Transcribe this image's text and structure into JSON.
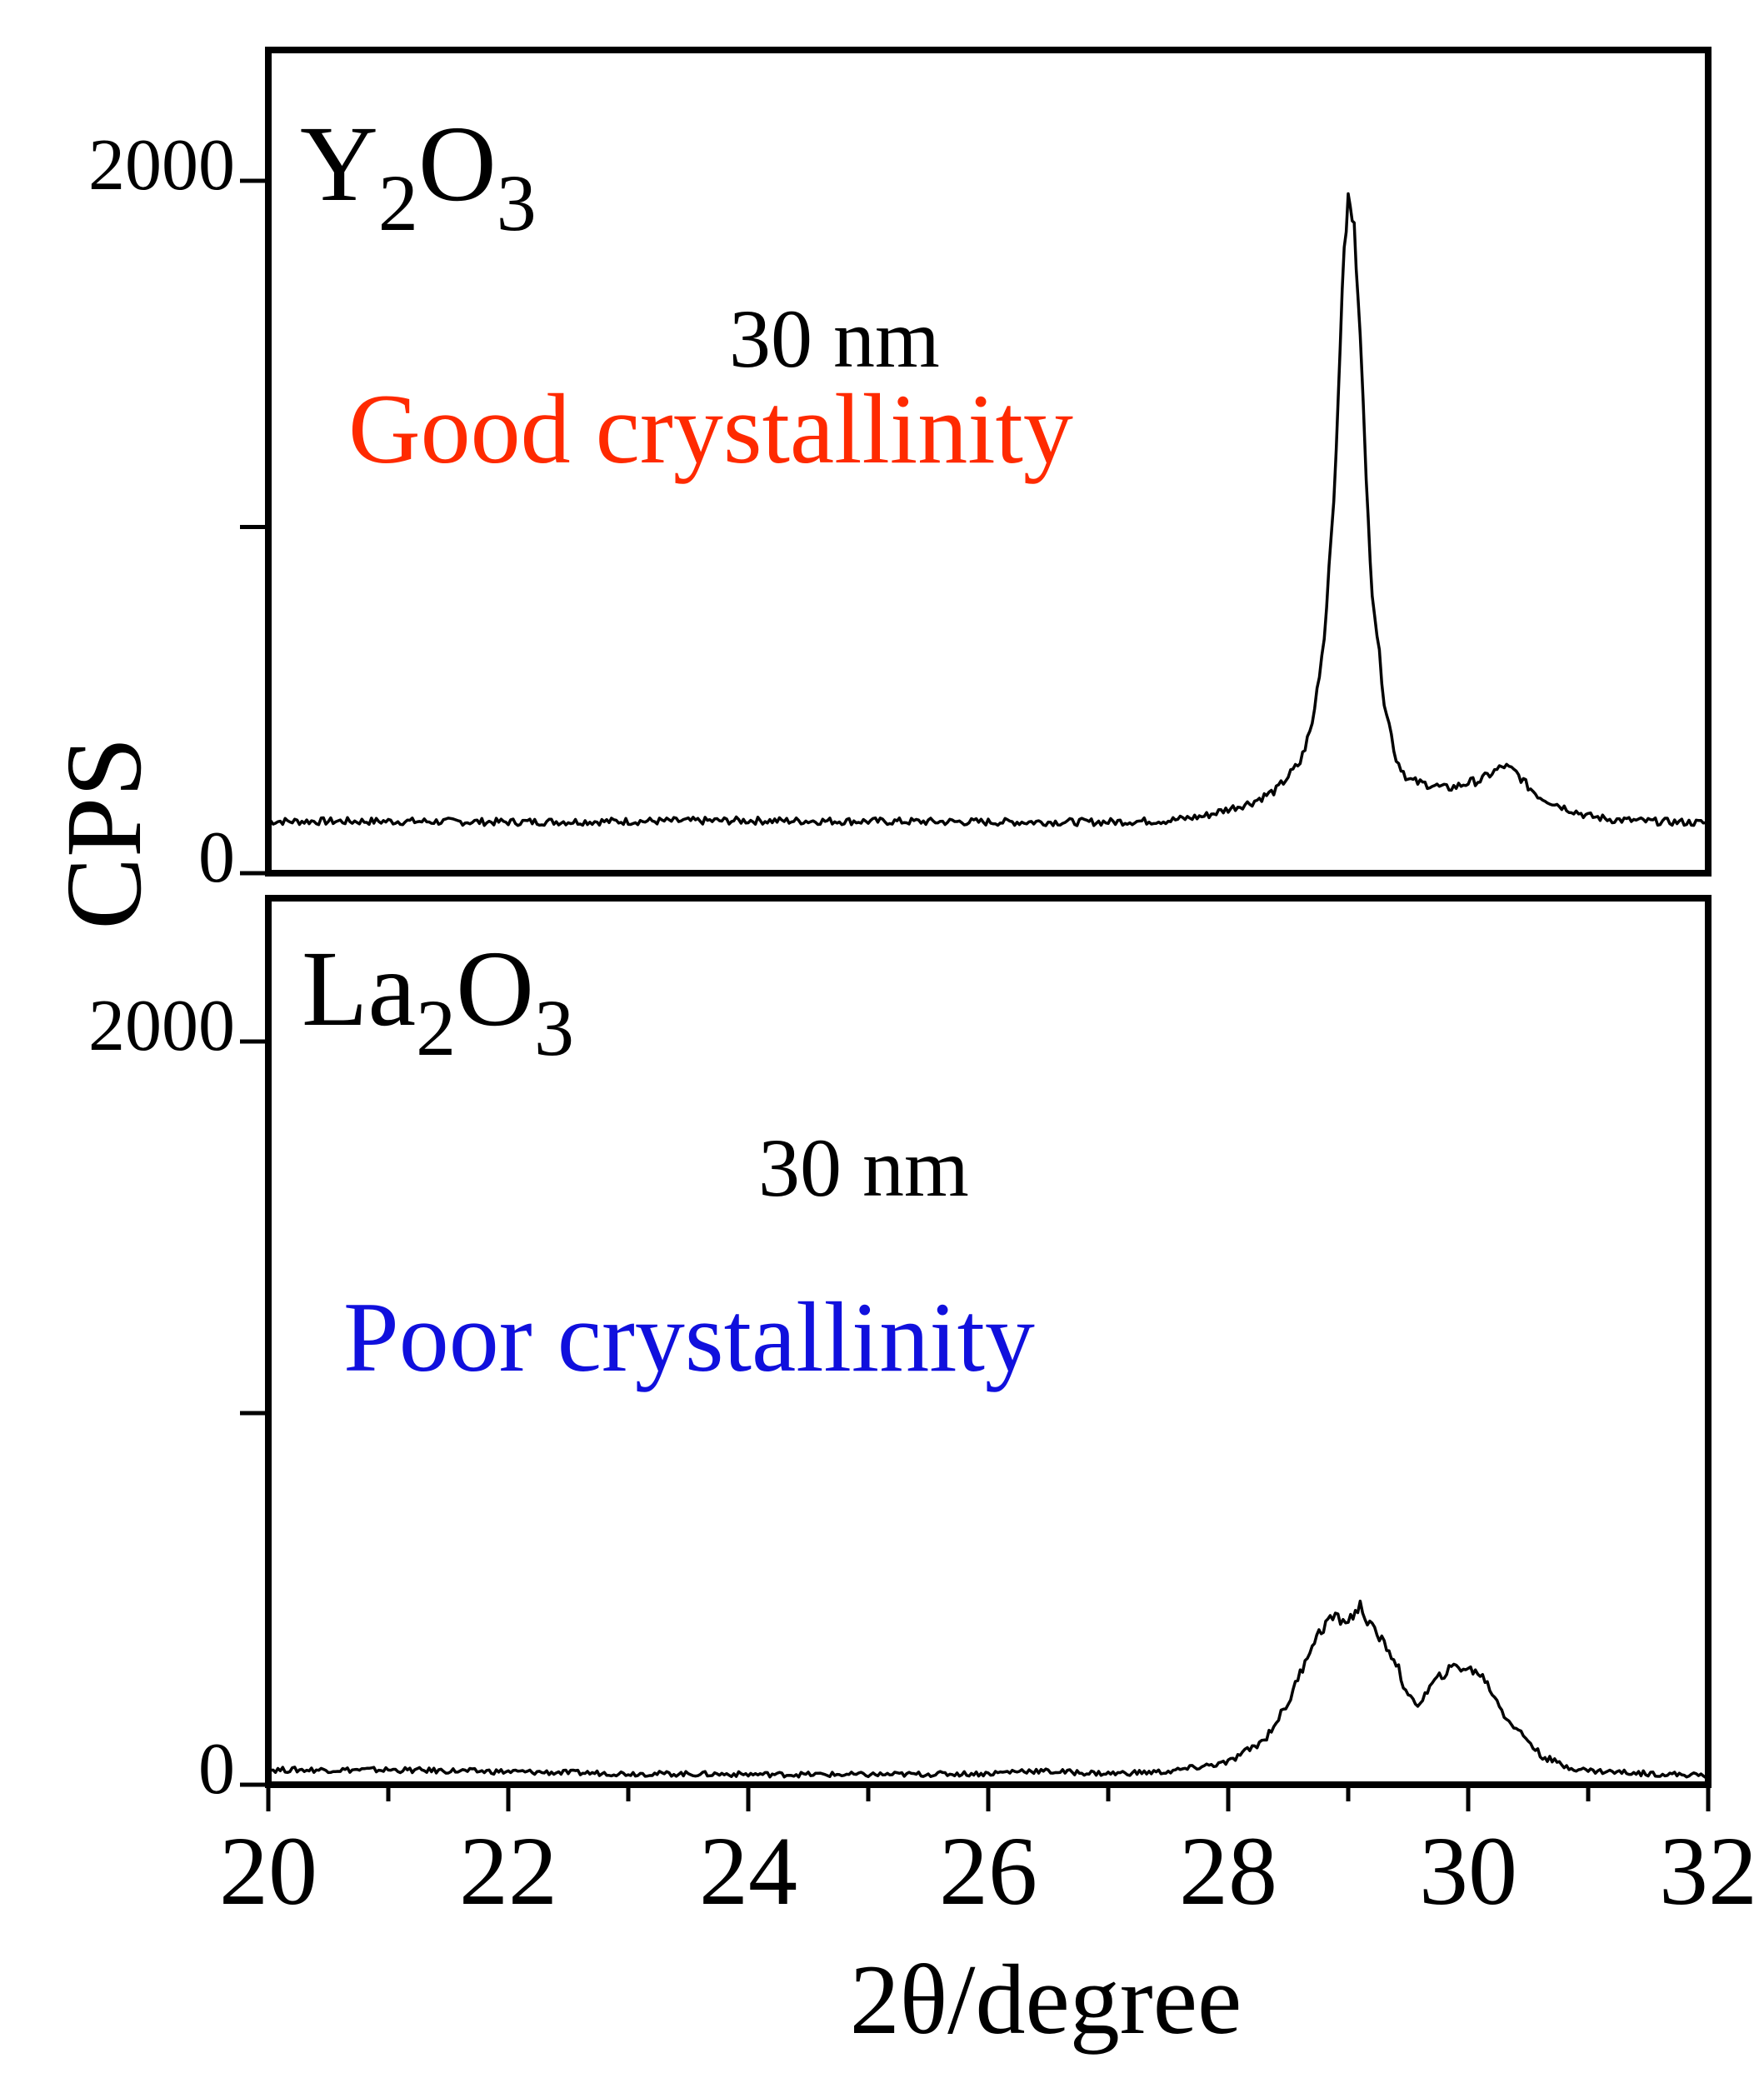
{
  "y_axis_label": "CPS",
  "x_axis_label": "2θ/degree",
  "x_tick_labels": [
    "20",
    "22",
    "24",
    "26",
    "28",
    "30",
    "32"
  ],
  "chart_data": [
    {
      "type": "line",
      "panel": "top",
      "title": "",
      "sample_main": "Y",
      "sample_sub1": "2",
      "sample_mid": "O",
      "sample_sub2": "3",
      "size_label": "30 nm",
      "quality_label": "Good crystallinity",
      "quality_color": "#ff2a00",
      "line_color": "#000000",
      "xlim": [
        20,
        32
      ],
      "ylim": [
        0,
        2400
      ],
      "y_ticks": [
        0,
        1000,
        2000
      ],
      "y_tick_labels": [
        "0",
        "",
        "2000"
      ],
      "series": [
        {
          "x": [
            20.0,
            21.0,
            22.0,
            23.0,
            24.0,
            25.0,
            26.0,
            27.0,
            27.5,
            27.8,
            28.0,
            28.2,
            28.4,
            28.6,
            28.7,
            28.8,
            28.9,
            28.95,
            29.0,
            29.05,
            29.1,
            29.15,
            29.2,
            29.3,
            29.4,
            29.5,
            29.6,
            29.7,
            29.8,
            29.9,
            30.0,
            30.1,
            30.2,
            30.3,
            30.4,
            30.5,
            30.6,
            30.8,
            31.0,
            31.2,
            31.5,
            32.0
          ],
          "y": [
            150,
            150,
            148,
            150,
            152,
            150,
            148,
            148,
            152,
            165,
            185,
            205,
            240,
            320,
            430,
            680,
            1200,
            1700,
            1950,
            1860,
            1580,
            1120,
            820,
            500,
            330,
            270,
            260,
            255,
            245,
            250,
            262,
            268,
            290,
            310,
            290,
            250,
            220,
            190,
            165,
            155,
            150,
            145
          ]
        }
      ]
    },
    {
      "type": "line",
      "panel": "bottom",
      "title": "",
      "sample_main": "La",
      "sample_sub1": "2",
      "sample_mid": "O",
      "sample_sub2": "3",
      "size_label": "30 nm",
      "quality_label": "Poor crystallinity",
      "quality_color": "#1010dd",
      "line_color": "#000000",
      "xlim": [
        20,
        32
      ],
      "ylim": [
        0,
        2400
      ],
      "y_ticks": [
        0,
        1000,
        2000
      ],
      "y_tick_labels": [
        "0",
        "",
        "2000"
      ],
      "series": [
        {
          "x": [
            20.0,
            21.0,
            22.0,
            23.0,
            24.0,
            25.0,
            26.0,
            26.3,
            27.0,
            27.5,
            28.0,
            28.3,
            28.5,
            28.7,
            28.85,
            29.0,
            29.1,
            29.2,
            29.3,
            29.4,
            29.5,
            29.6,
            29.7,
            29.8,
            29.9,
            30.0,
            30.1,
            30.2,
            30.3,
            30.4,
            30.5,
            30.6,
            30.8,
            31.0,
            31.5,
            32.0
          ],
          "y": [
            40,
            40,
            35,
            30,
            28,
            27,
            30,
            38,
            30,
            35,
            60,
            120,
            220,
            380,
            450,
            440,
            480,
            420,
            380,
            330,
            230,
            220,
            270,
            300,
            320,
            310,
            300,
            250,
            190,
            150,
            120,
            80,
            50,
            38,
            30,
            25
          ]
        }
      ]
    }
  ]
}
